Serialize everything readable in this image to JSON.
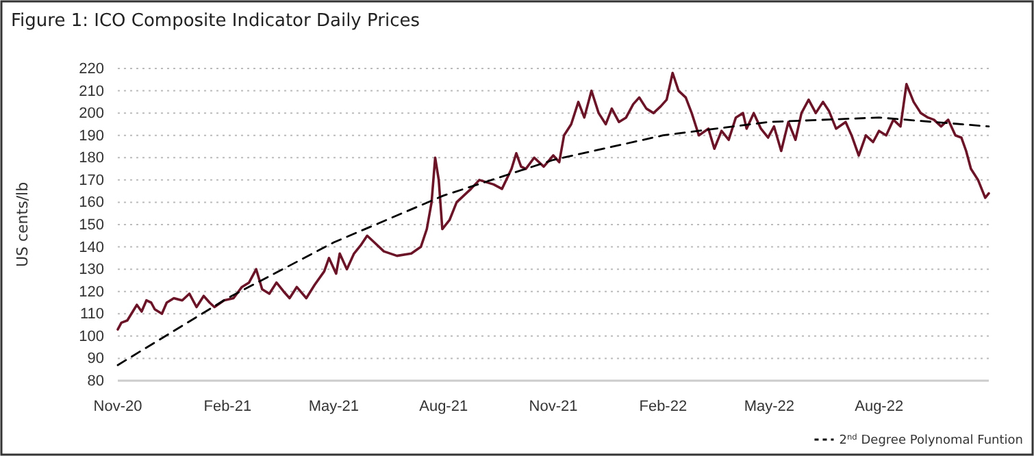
{
  "chart_data": {
    "type": "line",
    "title": "Figure 1: ICO Composite Indicator Daily Prices",
    "ylabel": "US cents/lb",
    "xlim": [
      "2020-11-01",
      "2022-11-01"
    ],
    "xticks": [
      {
        "value": "2020-11-01",
        "label": "Nov-20"
      },
      {
        "value": "2021-02-01",
        "label": "Feb-21"
      },
      {
        "value": "2021-05-01",
        "label": "May-21"
      },
      {
        "value": "2021-08-01",
        "label": "Aug-21"
      },
      {
        "value": "2021-11-01",
        "label": "Nov-21"
      },
      {
        "value": "2022-02-01",
        "label": "Feb-22"
      },
      {
        "value": "2022-05-01",
        "label": "May-22"
      },
      {
        "value": "2022-08-01",
        "label": "Aug-22"
      }
    ],
    "ylim": [
      80,
      220
    ],
    "yticks": [
      80,
      90,
      100,
      110,
      120,
      130,
      140,
      150,
      160,
      170,
      180,
      190,
      200,
      210,
      220
    ],
    "grid": "y",
    "legend": "bottom right",
    "series": [
      {
        "color": "#6b1428",
        "line_style": "solid",
        "x": [
          "2020-11-01",
          "2020-11-04",
          "2020-11-09",
          "2020-11-17",
          "2020-11-21",
          "2020-11-25",
          "2020-11-29",
          "2020-12-02",
          "2020-12-08",
          "2020-12-12",
          "2020-12-18",
          "2020-12-25",
          "2020-12-31",
          "2021-01-06",
          "2021-01-12",
          "2021-01-17",
          "2021-01-21",
          "2021-01-29",
          "2021-02-06",
          "2021-02-13",
          "2021-02-19",
          "2021-02-25",
          "2021-03-02",
          "2021-03-08",
          "2021-03-14",
          "2021-03-20",
          "2021-03-25",
          "2021-03-31",
          "2021-04-08",
          "2021-04-15",
          "2021-04-23",
          "2021-04-27",
          "2021-05-03",
          "2021-05-06",
          "2021-05-12",
          "2021-05-18",
          "2021-05-24",
          "2021-05-29",
          "2021-06-04",
          "2021-06-12",
          "2021-06-23",
          "2021-07-05",
          "2021-07-13",
          "2021-07-18",
          "2021-07-22",
          "2021-07-25",
          "2021-07-28",
          "2021-07-31",
          "2021-08-06",
          "2021-08-12",
          "2021-08-24",
          "2021-08-31",
          "2021-09-12",
          "2021-09-19",
          "2021-09-27",
          "2021-10-01",
          "2021-10-05",
          "2021-10-09",
          "2021-10-16",
          "2021-10-24",
          "2021-11-01",
          "2021-11-06",
          "2021-11-10",
          "2021-11-16",
          "2021-11-22",
          "2021-11-27",
          "2021-12-03",
          "2021-12-09",
          "2021-12-15",
          "2021-12-20",
          "2021-12-26",
          "2022-01-01",
          "2022-01-07",
          "2022-01-12",
          "2022-01-18",
          "2022-01-24",
          "2022-01-30",
          "2022-02-04",
          "2022-02-09",
          "2022-02-14",
          "2022-02-20",
          "2022-02-25",
          "2022-03-03",
          "2022-03-11",
          "2022-03-16",
          "2022-03-22",
          "2022-03-28",
          "2022-04-03",
          "2022-04-09",
          "2022-04-12",
          "2022-04-18",
          "2022-04-24",
          "2022-04-30",
          "2022-05-05",
          "2022-05-11",
          "2022-05-17",
          "2022-05-23",
          "2022-05-28",
          "2022-06-03",
          "2022-06-09",
          "2022-06-15",
          "2022-06-20",
          "2022-06-26",
          "2022-07-04",
          "2022-07-09",
          "2022-07-15",
          "2022-07-21",
          "2022-07-27",
          "2022-08-01",
          "2022-08-07",
          "2022-08-13",
          "2022-08-19",
          "2022-08-24",
          "2022-08-30",
          "2022-09-05",
          "2022-09-11",
          "2022-09-16",
          "2022-09-22",
          "2022-09-28",
          "2022-10-04",
          "2022-10-09",
          "2022-10-13",
          "2022-10-17",
          "2022-10-23",
          "2022-10-29",
          "2022-11-01"
        ],
        "values": [
          103,
          106,
          107,
          114,
          111,
          116,
          115,
          112,
          110,
          115,
          117,
          116,
          119,
          113,
          118,
          115,
          113,
          116,
          117,
          122,
          124,
          130,
          121,
          119,
          124,
          120,
          117,
          122,
          117,
          123,
          129,
          135,
          128,
          137,
          130,
          137,
          141,
          145,
          142,
          138,
          136,
          137,
          140,
          148,
          160,
          180,
          170,
          148,
          152,
          160,
          166,
          170,
          168,
          166,
          175,
          182,
          176,
          175,
          180,
          176,
          181,
          178,
          190,
          195,
          205,
          198,
          210,
          200,
          195,
          202,
          196,
          198,
          204,
          207,
          202,
          200,
          203,
          206,
          218,
          210,
          207,
          200,
          190,
          193,
          184,
          192,
          188,
          198,
          200,
          193,
          200,
          193,
          189,
          194,
          183,
          196,
          188,
          200,
          206,
          200,
          205,
          201,
          193,
          196,
          190,
          181,
          190,
          187,
          192,
          190,
          197,
          194,
          213,
          205,
          200,
          198,
          197,
          194,
          197,
          190,
          189,
          183,
          175,
          170,
          162,
          164
        ]
      },
      {
        "name": "2$^{nd}$ Degree Polynomal Funtion",
        "color": "#000000",
        "line_style": "dashed",
        "x": [
          "2020-11-01",
          "2021-02-01",
          "2021-05-01",
          "2021-08-01",
          "2021-11-01",
          "2022-02-01",
          "2022-05-01",
          "2022-08-01",
          "2022-11-01"
        ],
        "values": [
          87,
          117,
          142,
          163,
          179,
          190,
          196,
          198,
          194
        ]
      }
    ]
  }
}
